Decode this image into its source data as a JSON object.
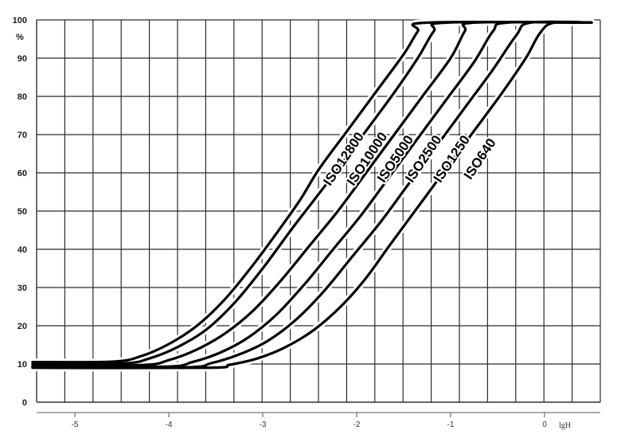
{
  "chart_data": {
    "type": "line",
    "title": "",
    "xlabel": "lgH",
    "ylabel": "%",
    "xlim": [
      -5.45,
      0.6
    ],
    "ylim": [
      0,
      100
    ],
    "grid": true,
    "legend": "none",
    "x_ticks": [
      {
        "value": -5,
        "label": "-5"
      },
      {
        "value": -4,
        "label": "-4"
      },
      {
        "value": -3,
        "label": "-3"
      },
      {
        "value": -2,
        "label": "-2"
      },
      {
        "value": -1,
        "label": "-1"
      },
      {
        "value": 0,
        "label": "0"
      }
    ],
    "y_ticks": [
      {
        "value": 0,
        "label": "0"
      },
      {
        "value": 10,
        "label": "10"
      },
      {
        "value": 20,
        "label": "20"
      },
      {
        "value": 30,
        "label": "30"
      },
      {
        "value": 40,
        "label": "40"
      },
      {
        "value": 50,
        "label": "50"
      },
      {
        "value": 60,
        "label": "60"
      },
      {
        "value": 70,
        "label": "70"
      },
      {
        "value": 80,
        "label": "80"
      },
      {
        "value": 90,
        "label": "90"
      },
      {
        "value": 100,
        "label": "100"
      }
    ],
    "series": [
      {
        "name": "ISO12800",
        "points": [
          [
            -5.45,
            10.5
          ],
          [
            -4.6,
            10.6
          ],
          [
            -4.3,
            12
          ],
          [
            -4.0,
            15.2
          ],
          [
            -3.7,
            20
          ],
          [
            -3.4,
            27
          ],
          [
            -3.1,
            36
          ],
          [
            -2.8,
            46
          ],
          [
            -2.6,
            53
          ],
          [
            -2.4,
            61
          ],
          [
            -2.1,
            71
          ],
          [
            -1.8,
            81
          ],
          [
            -1.5,
            91
          ],
          [
            -1.35,
            97
          ],
          [
            -1.25,
            99.3
          ],
          [
            0.5,
            99.3
          ]
        ]
      },
      {
        "name": "ISO10000",
        "points": [
          [
            -5.45,
            10
          ],
          [
            -4.5,
            10.1
          ],
          [
            -4.2,
            11.5
          ],
          [
            -3.9,
            14.5
          ],
          [
            -3.6,
            19
          ],
          [
            -3.3,
            26
          ],
          [
            -3.0,
            35
          ],
          [
            -2.7,
            45
          ],
          [
            -2.45,
            53
          ],
          [
            -2.2,
            61
          ],
          [
            -1.9,
            71
          ],
          [
            -1.6,
            81
          ],
          [
            -1.35,
            90
          ],
          [
            -1.18,
            97
          ],
          [
            -1.05,
            99.3
          ],
          [
            0.5,
            99.3
          ]
        ]
      },
      {
        "name": "ISO5000",
        "points": [
          [
            -5.45,
            9.6
          ],
          [
            -4.3,
            9.7
          ],
          [
            -4.0,
            11
          ],
          [
            -3.7,
            13.8
          ],
          [
            -3.4,
            18
          ],
          [
            -3.1,
            24
          ],
          [
            -2.8,
            32
          ],
          [
            -2.5,
            41
          ],
          [
            -2.2,
            50
          ],
          [
            -1.9,
            60
          ],
          [
            -1.6,
            70
          ],
          [
            -1.3,
            80
          ],
          [
            -1.0,
            90
          ],
          [
            -0.85,
            97
          ],
          [
            -0.75,
            99.3
          ],
          [
            0.5,
            99.3
          ]
        ]
      },
      {
        "name": "ISO2500",
        "points": [
          [
            -5.45,
            9.3
          ],
          [
            -4.05,
            9.3
          ],
          [
            -3.75,
            10.5
          ],
          [
            -3.45,
            13
          ],
          [
            -3.15,
            17
          ],
          [
            -2.85,
            23
          ],
          [
            -2.55,
            31
          ],
          [
            -2.25,
            40
          ],
          [
            -1.95,
            49
          ],
          [
            -1.65,
            59
          ],
          [
            -1.35,
            69
          ],
          [
            -1.05,
            79
          ],
          [
            -0.75,
            89
          ],
          [
            -0.55,
            97
          ],
          [
            -0.4,
            99.3
          ],
          [
            0.5,
            99.3
          ]
        ]
      },
      {
        "name": "ISO1250",
        "points": [
          [
            -5.45,
            9.1
          ],
          [
            -3.85,
            9.1
          ],
          [
            -3.55,
            10.2
          ],
          [
            -3.25,
            12.5
          ],
          [
            -2.95,
            16
          ],
          [
            -2.65,
            21.5
          ],
          [
            -2.35,
            29
          ],
          [
            -2.05,
            38
          ],
          [
            -1.75,
            47
          ],
          [
            -1.45,
            57
          ],
          [
            -1.15,
            67
          ],
          [
            -0.85,
            77
          ],
          [
            -0.55,
            87
          ],
          [
            -0.3,
            96
          ],
          [
            -0.15,
            99.3
          ],
          [
            0.5,
            99.3
          ]
        ]
      },
      {
        "name": "ISO640",
        "points": [
          [
            -5.45,
            9.0
          ],
          [
            -3.6,
            9.0
          ],
          [
            -3.35,
            9.8
          ],
          [
            -3.05,
            11.5
          ],
          [
            -2.75,
            14.5
          ],
          [
            -2.45,
            19
          ],
          [
            -2.15,
            25.5
          ],
          [
            -1.9,
            32.5
          ],
          [
            -1.65,
            41
          ],
          [
            -1.35,
            51
          ],
          [
            -1.05,
            61
          ],
          [
            -0.75,
            71
          ],
          [
            -0.45,
            81
          ],
          [
            -0.2,
            90
          ],
          [
            -0.05,
            96.5
          ],
          [
            0.1,
            99.3
          ],
          [
            0.5,
            99.3
          ]
        ]
      }
    ],
    "annotations": [
      {
        "text": "ISO12800",
        "series": "ISO12800",
        "at_x": -2.1,
        "at_y": 63
      },
      {
        "text": "ISO10000",
        "series": "ISO10000",
        "at_x": -1.85,
        "at_y": 63
      },
      {
        "text": "ISO5000",
        "series": "ISO5000",
        "at_x": -1.55,
        "at_y": 63
      },
      {
        "text": "ISO2500",
        "series": "ISO2500",
        "at_x": -1.25,
        "at_y": 63
      },
      {
        "text": "ISO1250",
        "series": "ISO1250",
        "at_x": -0.95,
        "at_y": 63
      },
      {
        "text": "ISO640",
        "series": "ISO640",
        "at_x": -0.65,
        "at_y": 63
      }
    ]
  }
}
